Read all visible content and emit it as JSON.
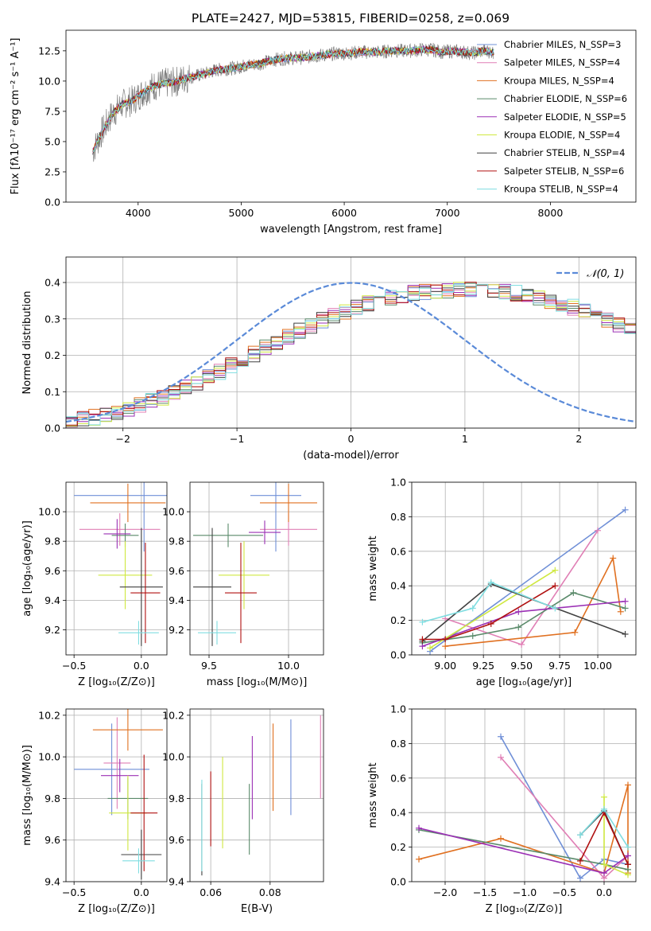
{
  "figure": {
    "title": "PLATE=2427, MJD=53815, FIBERID=0258, z=0.069"
  },
  "colors": {
    "grid": "#b0b0b0",
    "data_spectrum": "#808080"
  },
  "chart_data": [
    {
      "id": "spectrum",
      "type": "line",
      "title": "PLATE=2427, MJD=53815, FIBERID=0258, z=0.069",
      "xlabel": "wavelength [Angstrom, rest frame]",
      "ylabel": "Flux [fλ10⁻¹⁷ erg cm⁻² s⁻¹ A⁻¹]",
      "xlim": [
        3300,
        8830
      ],
      "ylim": [
        0,
        14.2
      ],
      "xticks": [
        4000,
        5000,
        6000,
        7000,
        8000
      ],
      "yticks": [
        0.0,
        2.5,
        5.0,
        7.5,
        10.0,
        12.5
      ],
      "grid": false,
      "legend": "top-right",
      "data_line": {
        "x": [
          3560,
          3650,
          3750,
          3850,
          3950,
          4050,
          4150,
          4250,
          4350,
          4450,
          4550,
          4650,
          4750,
          4850,
          4950,
          5050,
          5150,
          5250,
          5350,
          5450,
          5550,
          5650,
          5750,
          5850,
          5950,
          6050,
          6150,
          6250,
          6350,
          6450,
          6550,
          6650,
          6750,
          6850,
          6950,
          7050,
          7150,
          7250,
          7350,
          7450
        ],
        "y": [
          4.2,
          5.8,
          7.3,
          8.1,
          8.4,
          9.1,
          9.6,
          9.8,
          9.9,
          10.2,
          10.4,
          10.6,
          10.9,
          11.0,
          11.1,
          11.3,
          11.4,
          11.6,
          11.8,
          11.9,
          11.9,
          12.0,
          12.1,
          12.2,
          12.3,
          12.3,
          12.4,
          12.4,
          12.4,
          12.5,
          12.5,
          12.5,
          12.6,
          12.6,
          12.4,
          12.5,
          12.4,
          12.3,
          12.5,
          12.4
        ]
      },
      "series": [
        {
          "name": "Chabrier MILES, N_SSP=3",
          "color": "#6f8fd7"
        },
        {
          "name": "Salpeter MILES, N_SSP=4",
          "color": "#e07fb5"
        },
        {
          "name": "Kroupa MILES, N_SSP=4",
          "color": "#e07020"
        },
        {
          "name": "Chabrier ELODIE, N_SSP=6",
          "color": "#5a8a6a"
        },
        {
          "name": "Salpeter ELODIE, N_SSP=5",
          "color": "#9b30b5"
        },
        {
          "name": "Kroupa ELODIE, N_SSP=4",
          "color": "#cfe840"
        },
        {
          "name": "Chabrier STELIB, N_SSP=4",
          "color": "#404040"
        },
        {
          "name": "Salpeter STELIB, N_SSP=6",
          "color": "#b01010"
        },
        {
          "name": "Kroupa STELIB, N_SSP=4",
          "color": "#7fdde0"
        }
      ]
    },
    {
      "id": "residuals",
      "type": "histogram",
      "xlabel": "(data-model)/error",
      "ylabel": "Normed distribution",
      "xlim": [
        -2.5,
        2.5
      ],
      "ylim": [
        0,
        0.47
      ],
      "xticks": [
        -2,
        -1,
        0,
        1,
        2
      ],
      "yticks": [
        0.0,
        0.1,
        0.2,
        0.3,
        0.4
      ],
      "grid": true,
      "legend": "top-right",
      "legend_label": "𝒩(0, 1)",
      "gaussian_color": "#5a8ad8",
      "bin_width": 0.1,
      "bin_start": -2.5,
      "mean_values": [
        0.018,
        0.024,
        0.03,
        0.037,
        0.045,
        0.053,
        0.063,
        0.073,
        0.085,
        0.097,
        0.111,
        0.125,
        0.14,
        0.155,
        0.171,
        0.187,
        0.204,
        0.22,
        0.236,
        0.252,
        0.267,
        0.282,
        0.296,
        0.309,
        0.321,
        0.332,
        0.342,
        0.351,
        0.358,
        0.365,
        0.37,
        0.374,
        0.377,
        0.379,
        0.38,
        0.38,
        0.379,
        0.377,
        0.374,
        0.37,
        0.365,
        0.358,
        0.351,
        0.342,
        0.332,
        0.321,
        0.309,
        0.296,
        0.282,
        0.267
      ]
    },
    {
      "id": "age-vs-Z",
      "type": "errorbar",
      "xlabel": "Z [log₁₀(Z/Z⊙)]",
      "ylabel": "age  [log₁₀(age/yr)]",
      "xlim": [
        -0.56,
        0.19
      ],
      "ylim": [
        9.03,
        10.2
      ],
      "xticks": [
        -0.5,
        0.0
      ],
      "yticks": [
        9.2,
        9.4,
        9.6,
        9.8,
        10.0
      ],
      "grid": true,
      "points": [
        {
          "x": 0.02,
          "xerr": 0.52,
          "y": 10.11,
          "yerr": 0.38,
          "series": 0
        },
        {
          "x": -0.16,
          "xerr": 0.3,
          "y": 9.88,
          "yerr": 0.11,
          "series": 1
        },
        {
          "x": -0.1,
          "xerr": 0.28,
          "y": 10.06,
          "yerr": 0.13,
          "series": 2
        },
        {
          "x": -0.12,
          "xerr": 0.1,
          "y": 9.84,
          "yerr": 0.08,
          "series": 3
        },
        {
          "x": -0.18,
          "xerr": 0.1,
          "y": 9.85,
          "yerr": 0.1,
          "series": 4
        },
        {
          "x": -0.12,
          "xerr": 0.2,
          "y": 9.57,
          "yerr": 0.23,
          "series": 5
        },
        {
          "x": 0.0,
          "xerr": 0.16,
          "y": 9.49,
          "yerr": 0.4,
          "series": 6
        },
        {
          "x": 0.03,
          "xerr": 0.11,
          "y": 9.45,
          "yerr": 0.34,
          "series": 7
        },
        {
          "x": -0.02,
          "xerr": 0.15,
          "y": 9.18,
          "yerr": 0.08,
          "series": 8
        }
      ]
    },
    {
      "id": "age-vs-mass",
      "type": "errorbar",
      "xlabel": "mass [log₁₀(M/M⊙)]",
      "ylabel": "",
      "xlim": [
        9.38,
        10.22
      ],
      "ylim": [
        9.03,
        10.2
      ],
      "xticks": [
        9.5,
        10.0
      ],
      "yticks": [
        9.2,
        9.4,
        9.6,
        9.8,
        10.0
      ],
      "grid": true,
      "points": [
        {
          "x": 9.92,
          "xerr": 0.16,
          "y": 10.11,
          "yerr": 0.38,
          "series": 0
        },
        {
          "x": 10.0,
          "xerr": 0.18,
          "y": 9.88,
          "yerr": 0.11,
          "series": 1
        },
        {
          "x": 10.0,
          "xerr": 0.18,
          "y": 10.06,
          "yerr": 0.13,
          "series": 2
        },
        {
          "x": 9.62,
          "xerr": 0.22,
          "y": 9.84,
          "yerr": 0.08,
          "series": 3
        },
        {
          "x": 9.85,
          "xerr": 0.1,
          "y": 9.86,
          "yerr": 0.08,
          "series": 4
        },
        {
          "x": 9.72,
          "xerr": 0.16,
          "y": 9.57,
          "yerr": 0.23,
          "series": 5
        },
        {
          "x": 9.52,
          "xerr": 0.12,
          "y": 9.49,
          "yerr": 0.4,
          "series": 6
        },
        {
          "x": 9.7,
          "xerr": 0.1,
          "y": 9.45,
          "yerr": 0.34,
          "series": 7
        },
        {
          "x": 9.55,
          "xerr": 0.12,
          "y": 9.18,
          "yerr": 0.08,
          "series": 8
        }
      ]
    },
    {
      "id": "massweight-vs-age",
      "type": "line",
      "xlabel": "age  [log₁₀(age/yr)]",
      "ylabel": "mass weight",
      "xlim": [
        8.78,
        10.25
      ],
      "ylim": [
        0,
        1.0
      ],
      "xticks": [
        9.0,
        9.25,
        9.5,
        9.75,
        10.0
      ],
      "yticks": [
        0.0,
        0.2,
        0.4,
        0.6,
        0.8,
        1.0
      ],
      "grid": true,
      "series": [
        {
          "series": 0,
          "x": [
            8.9,
            10.18
          ],
          "y": [
            0.02,
            0.84
          ]
        },
        {
          "series": 1,
          "x": [
            9.0,
            9.5,
            10.0
          ],
          "y": [
            0.21,
            0.06,
            0.72
          ]
        },
        {
          "series": 2,
          "x": [
            9.0,
            9.85,
            10.1,
            10.15
          ],
          "y": [
            0.05,
            0.13,
            0.56,
            0.25
          ]
        },
        {
          "series": 3,
          "x": [
            8.85,
            9.18,
            9.48,
            9.84,
            10.18
          ],
          "y": [
            0.07,
            0.11,
            0.16,
            0.36,
            0.27
          ]
        },
        {
          "series": 4,
          "x": [
            8.85,
            9.48,
            10.18
          ],
          "y": [
            0.05,
            0.25,
            0.31
          ]
        },
        {
          "series": 5,
          "x": [
            8.9,
            9.72
          ],
          "y": [
            0.04,
            0.49
          ]
        },
        {
          "series": 6,
          "x": [
            8.85,
            9.3,
            10.18
          ],
          "y": [
            0.08,
            0.41,
            0.12
          ]
        },
        {
          "series": 7,
          "x": [
            8.85,
            9.0,
            9.3,
            9.72
          ],
          "y": [
            0.09,
            0.09,
            0.18,
            0.4
          ]
        },
        {
          "series": 8,
          "x": [
            8.85,
            9.18,
            9.3,
            9.72
          ],
          "y": [
            0.19,
            0.27,
            0.42,
            0.27
          ]
        }
      ]
    },
    {
      "id": "mass-vs-Z",
      "type": "errorbar",
      "xlabel": "Z [log₁₀(Z/Z⊙)]",
      "ylabel": "mass [log₁₀(M/M⊙)]",
      "xlim": [
        -0.56,
        0.19
      ],
      "ylim": [
        9.4,
        10.23
      ],
      "xticks": [
        -0.5,
        0.0
      ],
      "yticks": [
        9.4,
        9.6,
        9.8,
        10.0,
        10.2
      ],
      "grid": true,
      "points": [
        {
          "x": -0.22,
          "xerr": 0.28,
          "y": 9.94,
          "yerr": 0.22,
          "series": 0
        },
        {
          "x": -0.18,
          "xerr": 0.1,
          "y": 9.97,
          "yerr": 0.22,
          "series": 1
        },
        {
          "x": -0.1,
          "xerr": 0.26,
          "y": 10.13,
          "yerr": 0.1,
          "series": 2
        },
        {
          "x": -0.1,
          "xerr": 0.15,
          "y": 9.8,
          "yerr": 0.1,
          "series": 3
        },
        {
          "x": -0.16,
          "xerr": 0.14,
          "y": 9.91,
          "yerr": 0.08,
          "series": 4
        },
        {
          "x": -0.1,
          "xerr": 0.14,
          "y": 9.73,
          "yerr": 0.18,
          "series": 5
        },
        {
          "x": 0.0,
          "xerr": 0.15,
          "y": 9.53,
          "yerr": 0.12,
          "series": 6
        },
        {
          "x": 0.02,
          "xerr": 0.1,
          "y": 9.73,
          "yerr": 0.28,
          "series": 7
        },
        {
          "x": -0.02,
          "xerr": 0.12,
          "y": 9.5,
          "yerr": 0.06,
          "series": 8
        }
      ]
    },
    {
      "id": "mass-vs-EBV",
      "type": "errorbar",
      "xlabel": "E(B-V)",
      "ylabel": "",
      "xlim": [
        0.053,
        0.098
      ],
      "ylim": [
        9.4,
        10.23
      ],
      "xticks": [
        0.06,
        0.08
      ],
      "yticks": [
        9.4,
        9.6,
        9.8,
        10.0,
        10.2
      ],
      "grid": true,
      "points": [
        {
          "x": 0.087,
          "y": 9.95,
          "yerr": 0.23,
          "series": 0
        },
        {
          "x": 0.097,
          "y": 10.0,
          "yerr": 0.2,
          "series": 1
        },
        {
          "x": 0.081,
          "y": 9.95,
          "yerr": 0.21,
          "series": 2
        },
        {
          "x": 0.073,
          "y": 9.7,
          "yerr": 0.17,
          "series": 3
        },
        {
          "x": 0.074,
          "y": 9.9,
          "yerr": 0.2,
          "series": 4
        },
        {
          "x": 0.064,
          "y": 9.78,
          "yerr": 0.22,
          "series": 5
        },
        {
          "x": 0.057,
          "y": 9.65,
          "yerr": 0.22,
          "series": 6
        },
        {
          "x": 0.06,
          "y": 9.75,
          "yerr": 0.18,
          "series": 7
        },
        {
          "x": 0.057,
          "y": 9.67,
          "yerr": 0.22,
          "series": 8
        }
      ]
    },
    {
      "id": "massweight-vs-Z",
      "type": "line",
      "xlabel": "Z [log₁₀(Z/Z⊙)]",
      "ylabel": "mass weight",
      "xlim": [
        -2.42,
        0.4
      ],
      "ylim": [
        0,
        1.0
      ],
      "xticks": [
        -2.0,
        -1.5,
        -1.0,
        -0.5,
        0.0
      ],
      "yticks": [
        0.0,
        0.2,
        0.4,
        0.6,
        0.8,
        1.0
      ],
      "grid": true,
      "series": [
        {
          "series": 0,
          "x": [
            -1.3,
            -0.3,
            0.0,
            0.3
          ],
          "y": [
            0.84,
            0.02,
            0.13,
            0.1
          ]
        },
        {
          "series": 1,
          "x": [
            -1.3,
            0.0,
            0.3
          ],
          "y": [
            0.72,
            0.02,
            0.15
          ]
        },
        {
          "series": 2,
          "x": [
            -2.33,
            -1.3,
            0.0,
            0.3,
            0.3
          ],
          "y": [
            0.13,
            0.25,
            0.05,
            0.56,
            0.05
          ]
        },
        {
          "series": 3,
          "x": [
            -2.33,
            -0.0,
            0.3
          ],
          "y": [
            0.3,
            0.1,
            0.07
          ]
        },
        {
          "series": 4,
          "x": [
            -2.33,
            0.0,
            0.3
          ],
          "y": [
            0.31,
            0.05,
            0.15
          ]
        },
        {
          "series": 5,
          "x": [
            0.0,
            0.0,
            0.3
          ],
          "y": [
            0.49,
            0.1,
            0.04
          ]
        },
        {
          "series": 6,
          "x": [
            -0.3,
            0.0,
            0.3
          ],
          "y": [
            0.27,
            0.41,
            0.1
          ]
        },
        {
          "series": 7,
          "x": [
            -0.3,
            0.0,
            0.3
          ],
          "y": [
            0.12,
            0.4,
            0.1
          ]
        },
        {
          "series": 8,
          "x": [
            -0.3,
            0.0,
            0.3
          ],
          "y": [
            0.27,
            0.42,
            0.2
          ]
        }
      ]
    }
  ]
}
